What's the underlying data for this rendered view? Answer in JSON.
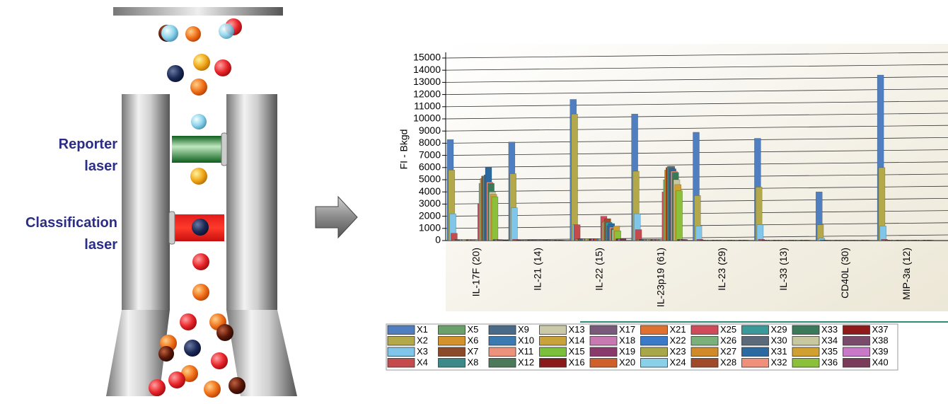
{
  "labels": {
    "reporter": "Reporter laser",
    "classification": "Classification laser"
  },
  "chart_data": {
    "type": "bar",
    "y_label": "FI - Bkgd",
    "categories": [
      "IL-17F (20)",
      "IL-21 (14)",
      "IL-22 (15)",
      "IL-23p19 (61)",
      "IL-23 (29)",
      "IL-33 (13)",
      "CD40L (30)",
      "MIP-3a (12)"
    ],
    "ylim": [
      0,
      15000
    ],
    "yticks": [
      0,
      1000,
      2000,
      3000,
      4000,
      5000,
      6000,
      7000,
      8000,
      9000,
      10000,
      11000,
      12000,
      13000,
      14000,
      15000
    ],
    "grid": true,
    "series": [
      {
        "name": "X1",
        "color": "#4f7fc0",
        "values": [
          8300,
          8100,
          11600,
          10400,
          8900,
          8400,
          4000,
          13600
        ]
      },
      {
        "name": "X2",
        "color": "#b3a94a",
        "values": [
          5800,
          5500,
          10400,
          5700,
          3700,
          4400,
          1300,
          6000
        ]
      },
      {
        "name": "X3",
        "color": "#80c6ea",
        "values": [
          2200,
          2700,
          1300,
          2200,
          1200,
          1300,
          200,
          1200
        ]
      },
      {
        "name": "X4",
        "color": "#c44a4c",
        "values": [
          600,
          100,
          1300,
          900,
          100,
          100,
          50,
          100
        ]
      },
      {
        "name": "X5",
        "color": "#6aa06a",
        "values": [
          80,
          40,
          150,
          90,
          40,
          40,
          30,
          40
        ]
      },
      {
        "name": "X6",
        "color": "#d4922c",
        "values": [
          80,
          40,
          150,
          90,
          40,
          40,
          30,
          40
        ]
      },
      {
        "name": "X7",
        "color": "#8a4a2a",
        "values": [
          80,
          40,
          150,
          90,
          40,
          40,
          30,
          40
        ]
      },
      {
        "name": "X8",
        "color": "#3a8a8a",
        "values": [
          80,
          40,
          150,
          90,
          40,
          40,
          30,
          40
        ]
      },
      {
        "name": "X9",
        "color": "#4a6a8a",
        "values": [
          80,
          40,
          150,
          90,
          40,
          40,
          30,
          40
        ]
      },
      {
        "name": "X10",
        "color": "#3a7ab0",
        "values": [
          80,
          40,
          150,
          90,
          40,
          40,
          30,
          40
        ]
      },
      {
        "name": "X11",
        "color": "#ec927c",
        "values": [
          80,
          40,
          150,
          90,
          40,
          40,
          30,
          40
        ]
      },
      {
        "name": "X12",
        "color": "#4a7a5a",
        "values": [
          80,
          40,
          150,
          90,
          40,
          40,
          30,
          40
        ]
      },
      {
        "name": "X13",
        "color": "#cbcaa8",
        "values": [
          80,
          40,
          150,
          90,
          40,
          40,
          30,
          40
        ]
      },
      {
        "name": "X14",
        "color": "#c9a23a",
        "values": [
          80,
          40,
          150,
          90,
          40,
          40,
          30,
          40
        ]
      },
      {
        "name": "X15",
        "color": "#7ac03a",
        "values": [
          80,
          40,
          150,
          90,
          40,
          40,
          30,
          40
        ]
      },
      {
        "name": "X16",
        "color": "#8a1a1a",
        "values": [
          80,
          40,
          150,
          90,
          40,
          40,
          30,
          40
        ]
      },
      {
        "name": "X17",
        "color": "#7a5a7a",
        "values": [
          80,
          40,
          150,
          90,
          40,
          40,
          30,
          40
        ]
      },
      {
        "name": "X18",
        "color": "#c87ab0",
        "values": [
          80,
          40,
          150,
          90,
          40,
          40,
          30,
          40
        ]
      },
      {
        "name": "X19",
        "color": "#8a3a6a",
        "values": [
          80,
          40,
          150,
          90,
          40,
          40,
          30,
          40
        ]
      },
      {
        "name": "X20",
        "color": "#d0602a",
        "values": [
          80,
          40,
          150,
          90,
          40,
          40,
          30,
          40
        ]
      },
      {
        "name": "X21",
        "color": "#e07030",
        "values": [
          80,
          40,
          150,
          90,
          40,
          40,
          30,
          40
        ]
      },
      {
        "name": "X22",
        "color": "#3a7ac8",
        "values": [
          80,
          40,
          150,
          90,
          40,
          40,
          30,
          40
        ]
      },
      {
        "name": "X23",
        "color": "#a8a84a",
        "values": [
          80,
          40,
          150,
          90,
          40,
          40,
          30,
          40
        ]
      },
      {
        "name": "X24",
        "color": "#8ad0e8",
        "values": [
          80,
          40,
          150,
          90,
          40,
          40,
          30,
          40
        ]
      },
      {
        "name": "X25",
        "color": "#d04a5a",
        "values": [
          3000,
          40,
          2000,
          4000,
          40,
          40,
          30,
          40
        ]
      },
      {
        "name": "X26",
        "color": "#7ab07a",
        "values": [
          4700,
          40,
          1500,
          5000,
          40,
          40,
          30,
          40
        ]
      },
      {
        "name": "X27",
        "color": "#d08a2a",
        "values": [
          5100,
          40,
          1600,
          5800,
          40,
          40,
          30,
          40
        ]
      },
      {
        "name": "X28",
        "color": "#a04a2a",
        "values": [
          5300,
          40,
          1800,
          6000,
          40,
          40,
          30,
          40
        ]
      },
      {
        "name": "X29",
        "color": "#3a9a9a",
        "values": [
          5300,
          40,
          1500,
          6100,
          40,
          40,
          30,
          40
        ]
      },
      {
        "name": "X30",
        "color": "#5a6a7a",
        "values": [
          5400,
          40,
          1200,
          6100,
          40,
          40,
          30,
          40
        ]
      },
      {
        "name": "X31",
        "color": "#2a6aa0",
        "values": [
          6000,
          40,
          1400,
          5900,
          40,
          40,
          30,
          40
        ]
      },
      {
        "name": "X32",
        "color": "#f0907a",
        "values": [
          4800,
          40,
          1100,
          5700,
          40,
          40,
          30,
          40
        ]
      },
      {
        "name": "X33",
        "color": "#3a7a5a",
        "values": [
          4700,
          40,
          1000,
          5600,
          40,
          40,
          30,
          40
        ]
      },
      {
        "name": "X34",
        "color": "#c8c8a0",
        "values": [
          4000,
          40,
          900,
          5000,
          40,
          40,
          30,
          40
        ]
      },
      {
        "name": "X35",
        "color": "#d0a030",
        "values": [
          3800,
          40,
          1200,
          4600,
          40,
          40,
          30,
          40
        ]
      },
      {
        "name": "X36",
        "color": "#8ac03a",
        "values": [
          3600,
          40,
          800,
          4100,
          40,
          40,
          30,
          40
        ]
      },
      {
        "name": "X37",
        "color": "#901a1a",
        "values": [
          80,
          40,
          150,
          90,
          40,
          40,
          30,
          40
        ]
      },
      {
        "name": "X38",
        "color": "#7a4a6a",
        "values": [
          80,
          40,
          150,
          90,
          40,
          40,
          30,
          40
        ]
      },
      {
        "name": "X39",
        "color": "#c87ac8",
        "values": [
          80,
          40,
          150,
          90,
          40,
          40,
          30,
          40
        ]
      },
      {
        "name": "X40",
        "color": "#7a3a5a",
        "values": [
          80,
          40,
          150,
          90,
          40,
          40,
          30,
          40
        ]
      }
    ]
  }
}
